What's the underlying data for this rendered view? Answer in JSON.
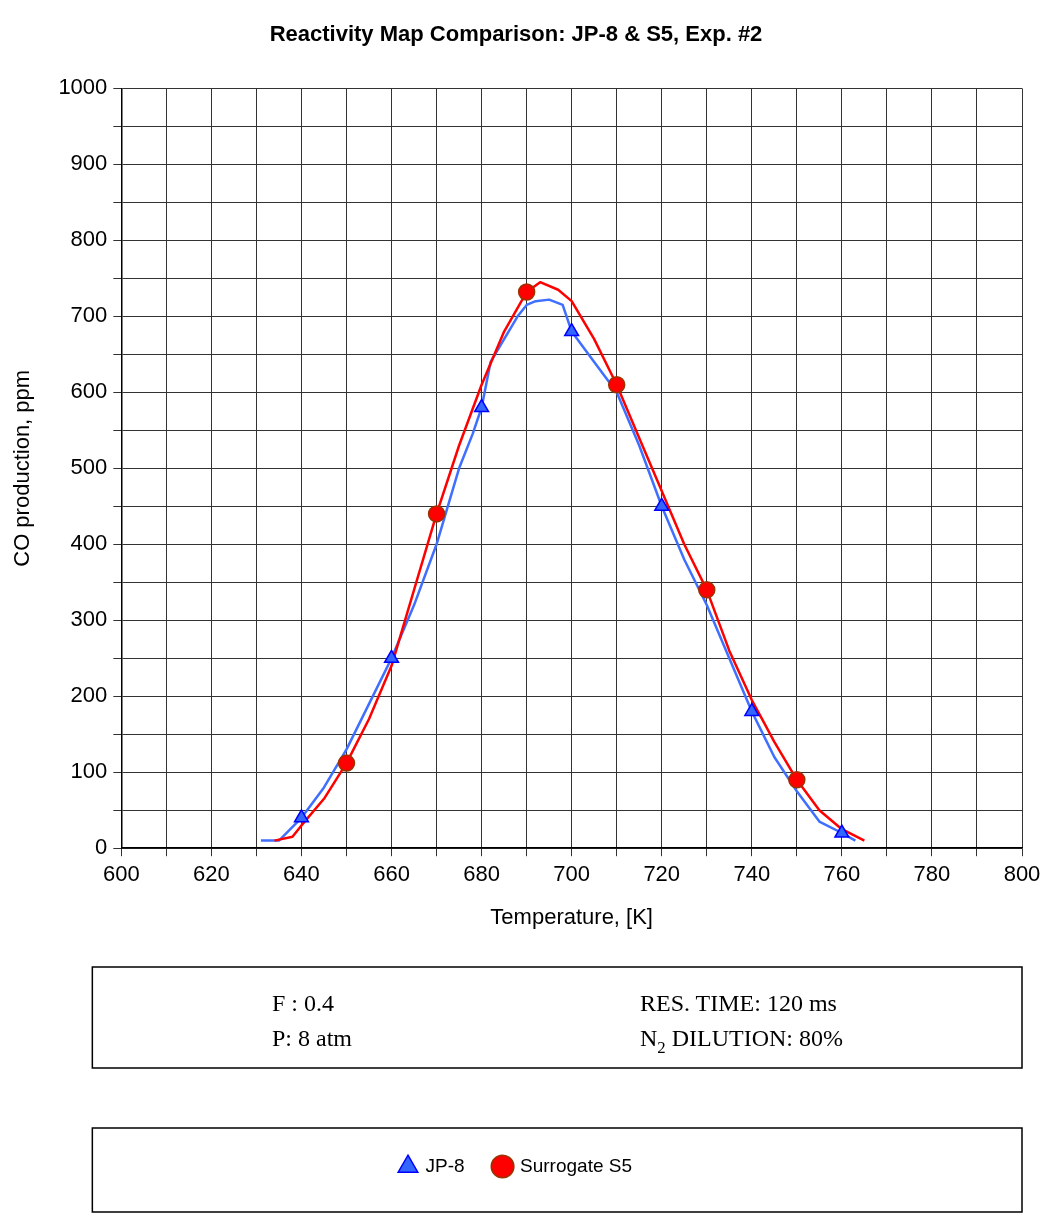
{
  "chart_data": {
    "type": "line",
    "title": "Reactivity Map Comparison: JP-8 & S5, Exp. #2",
    "xlabel": "Temperature, [K]",
    "ylabel": "CO production, ppm",
    "xlim": [
      600,
      800
    ],
    "xticks": [
      600,
      {
        "value": 610,
        "label": null
      },
      620,
      {
        "value": 630,
        "label": null
      },
      640,
      {
        "value": 650,
        "label": null
      },
      660,
      {
        "value": 670,
        "label": null
      },
      680,
      {
        "value": 690,
        "label": null
      },
      700,
      {
        "value": 710,
        "label": null
      },
      720,
      {
        "value": 730,
        "label": null
      },
      740,
      {
        "value": 750,
        "label": null
      },
      760,
      {
        "value": 770,
        "label": null
      },
      780,
      {
        "value": 790,
        "label": null
      },
      800
    ],
    "ylim": [
      0,
      1000
    ],
    "yticks": [
      0,
      {
        "value": 50,
        "label": null
      },
      100,
      {
        "value": 150,
        "label": null
      },
      200,
      {
        "value": 250,
        "label": null
      },
      300,
      {
        "value": 350,
        "label": null
      },
      400,
      {
        "value": 450,
        "label": null
      },
      500,
      {
        "value": 550,
        "label": null
      },
      600,
      {
        "value": 650,
        "label": null
      },
      700,
      {
        "value": 750,
        "label": null
      },
      800,
      {
        "value": 850,
        "label": null
      },
      900,
      {
        "value": 950,
        "label": null
      },
      1000
    ],
    "grid": true,
    "legend": "bottom",
    "line_style": "solid",
    "series": [
      {
        "type": "line",
        "marker": "none",
        "color": "#3f6fff",
        "x": [
          631,
          635,
          640,
          645,
          650,
          655,
          660,
          665,
          670,
          675,
          678,
          680,
          682,
          685,
          688,
          690,
          692,
          695,
          698,
          700,
          705,
          710,
          715,
          720,
          725,
          730,
          735,
          740,
          745,
          750,
          755,
          760,
          763
        ],
        "values": [
          10,
          10,
          40,
          80,
          130,
          190,
          250,
          320,
          400,
          500,
          545,
          580,
          640,
          670,
          700,
          715,
          720,
          722,
          715,
          680,
          640,
          600,
          530,
          450,
          380,
          320,
          250,
          180,
          120,
          75,
          35,
          20,
          10
        ]
      },
      {
        "type": "line",
        "marker": "none",
        "color": "#ff0000",
        "x": [
          634,
          638,
          640,
          645,
          650,
          655,
          660,
          665,
          670,
          675,
          680,
          685,
          690,
          693,
          697,
          700,
          705,
          710,
          715,
          720,
          725,
          730,
          735,
          740,
          745,
          750,
          755,
          760,
          765
        ],
        "values": [
          10,
          15,
          30,
          65,
          112,
          170,
          240,
          340,
          440,
          530,
          610,
          680,
          732,
          745,
          735,
          720,
          670,
          610,
          540,
          470,
          400,
          340,
          260,
          195,
          140,
          90,
          50,
          25,
          10
        ]
      },
      {
        "type": "scatter",
        "name": "JP-8",
        "marker": "triangle",
        "color": "#3366ff",
        "x": [
          640,
          660,
          680,
          700,
          720,
          740,
          760
        ],
        "values": [
          40,
          250,
          580,
          680,
          450,
          180,
          20
        ]
      },
      {
        "type": "scatter",
        "name": "Surrogate S5",
        "marker": "circle",
        "color": "#ff0000",
        "x": [
          650,
          670,
          690,
          710,
          730,
          750
        ],
        "values": [
          112,
          440,
          732,
          610,
          340,
          90
        ]
      }
    ],
    "annotations": [
      "F : 0.4",
      "P: 8 atm",
      "RES. TIME: 120 ms",
      "N$_{2}$ DILUTION: 80%"
    ]
  }
}
